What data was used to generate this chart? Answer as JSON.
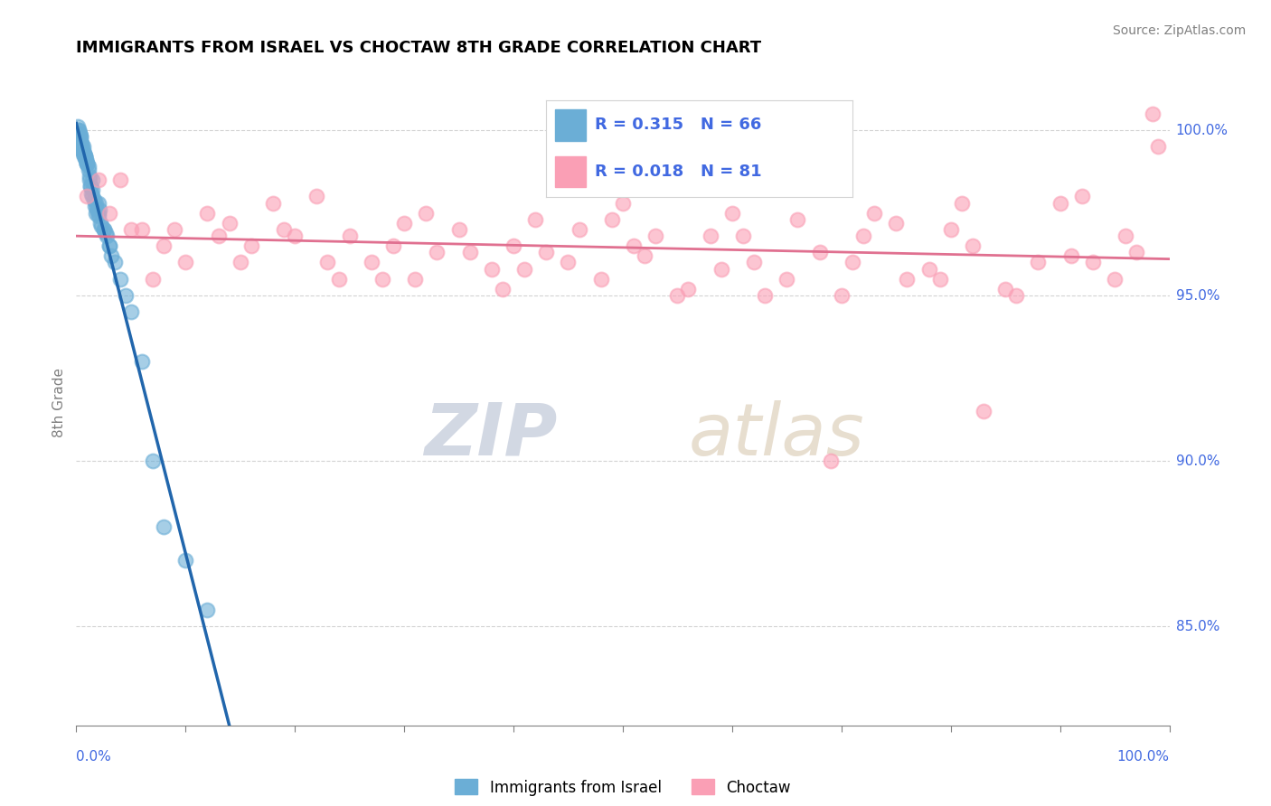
{
  "title": "IMMIGRANTS FROM ISRAEL VS CHOCTAW 8TH GRADE CORRELATION CHART",
  "source": "Source: ZipAtlas.com",
  "ylabel": "8th Grade",
  "ytick_values": [
    85.0,
    90.0,
    95.0,
    100.0
  ],
  "legend1_label": "Immigrants from Israel",
  "legend2_label": "Choctaw",
  "legend_r1": "R = 0.315",
  "legend_n1": "N = 66",
  "legend_r2": "R = 0.018",
  "legend_n2": "N = 81",
  "blue_color": "#6baed6",
  "pink_color": "#fa9fb5",
  "trend_blue": "#2166ac",
  "trend_pink": "#e07090",
  "watermark_zip": "ZIP",
  "watermark_atlas": "atlas",
  "xmin": 0.0,
  "xmax": 100.0,
  "ymin": 82.0,
  "ymax": 101.5,
  "blue_x": [
    0.5,
    1.0,
    1.2,
    0.8,
    2.0,
    1.5,
    0.3,
    0.7,
    1.8,
    2.5,
    3.0,
    0.2,
    0.4,
    0.9,
    1.1,
    0.6,
    2.2,
    1.7,
    0.5,
    1.3,
    1.6,
    2.8,
    0.3,
    0.8,
    1.4,
    2.0,
    3.5,
    0.1,
    0.6,
    1.0,
    1.9,
    0.4,
    2.3,
    0.7,
    1.5,
    2.7,
    0.2,
    1.2,
    4.0,
    3.2,
    0.5,
    1.8,
    0.9,
    1.1,
    2.5,
    0.3,
    5.0,
    4.5,
    6.0,
    8.0,
    12.0,
    10.0,
    0.2,
    0.5,
    0.8,
    1.0,
    1.5,
    2.0,
    0.4,
    0.6,
    3.0,
    7.0,
    0.3,
    0.7,
    1.3,
    2.1
  ],
  "blue_y": [
    99.5,
    99.0,
    98.5,
    99.2,
    97.8,
    98.0,
    99.8,
    99.3,
    97.5,
    97.0,
    96.5,
    100.0,
    99.7,
    99.1,
    98.8,
    99.4,
    97.2,
    97.7,
    99.6,
    98.3,
    97.9,
    96.8,
    99.9,
    99.2,
    98.1,
    97.4,
    96.0,
    100.1,
    99.5,
    99.0,
    97.6,
    99.8,
    97.1,
    99.3,
    98.2,
    96.9,
    99.7,
    98.6,
    95.5,
    96.2,
    99.4,
    97.8,
    99.1,
    98.9,
    97.0,
    99.9,
    94.5,
    95.0,
    93.0,
    88.0,
    85.5,
    87.0,
    100.0,
    99.6,
    99.2,
    99.0,
    98.5,
    97.5,
    99.8,
    99.3,
    96.5,
    90.0,
    99.9,
    99.2,
    98.3,
    97.6
  ],
  "pink_x": [
    2.0,
    5.0,
    8.0,
    12.0,
    15.0,
    18.0,
    22.0,
    25.0,
    28.0,
    30.0,
    33.0,
    35.0,
    38.0,
    40.0,
    42.0,
    45.0,
    48.0,
    50.0,
    52.0,
    55.0,
    58.0,
    60.0,
    62.0,
    65.0,
    68.0,
    70.0,
    72.0,
    75.0,
    78.0,
    80.0,
    82.0,
    85.0,
    88.0,
    90.0,
    92.0,
    95.0,
    97.0,
    98.5,
    1.0,
    3.0,
    6.0,
    10.0,
    14.0,
    20.0,
    24.0,
    27.0,
    32.0,
    36.0,
    41.0,
    46.0,
    51.0,
    56.0,
    61.0,
    66.0,
    71.0,
    76.0,
    81.0,
    86.0,
    91.0,
    96.0,
    4.0,
    9.0,
    16.0,
    23.0,
    31.0,
    43.0,
    53.0,
    63.0,
    73.0,
    83.0,
    93.0,
    99.0,
    7.0,
    13.0,
    19.0,
    29.0,
    39.0,
    49.0,
    59.0,
    69.0,
    79.0
  ],
  "pink_y": [
    98.5,
    97.0,
    96.5,
    97.5,
    96.0,
    97.8,
    98.0,
    96.8,
    95.5,
    97.2,
    96.3,
    97.0,
    95.8,
    96.5,
    97.3,
    96.0,
    95.5,
    97.8,
    96.2,
    95.0,
    96.8,
    97.5,
    96.0,
    95.5,
    96.3,
    95.0,
    96.8,
    97.2,
    95.8,
    97.0,
    96.5,
    95.2,
    96.0,
    97.8,
    98.0,
    95.5,
    96.3,
    100.5,
    98.0,
    97.5,
    97.0,
    96.0,
    97.2,
    96.8,
    95.5,
    96.0,
    97.5,
    96.3,
    95.8,
    97.0,
    96.5,
    95.2,
    96.8,
    97.3,
    96.0,
    95.5,
    97.8,
    95.0,
    96.2,
    96.8,
    98.5,
    97.0,
    96.5,
    96.0,
    95.5,
    96.3,
    96.8,
    95.0,
    97.5,
    91.5,
    96.0,
    99.5,
    95.5,
    96.8,
    97.0,
    96.5,
    95.2,
    97.3,
    95.8,
    90.0,
    95.5
  ]
}
